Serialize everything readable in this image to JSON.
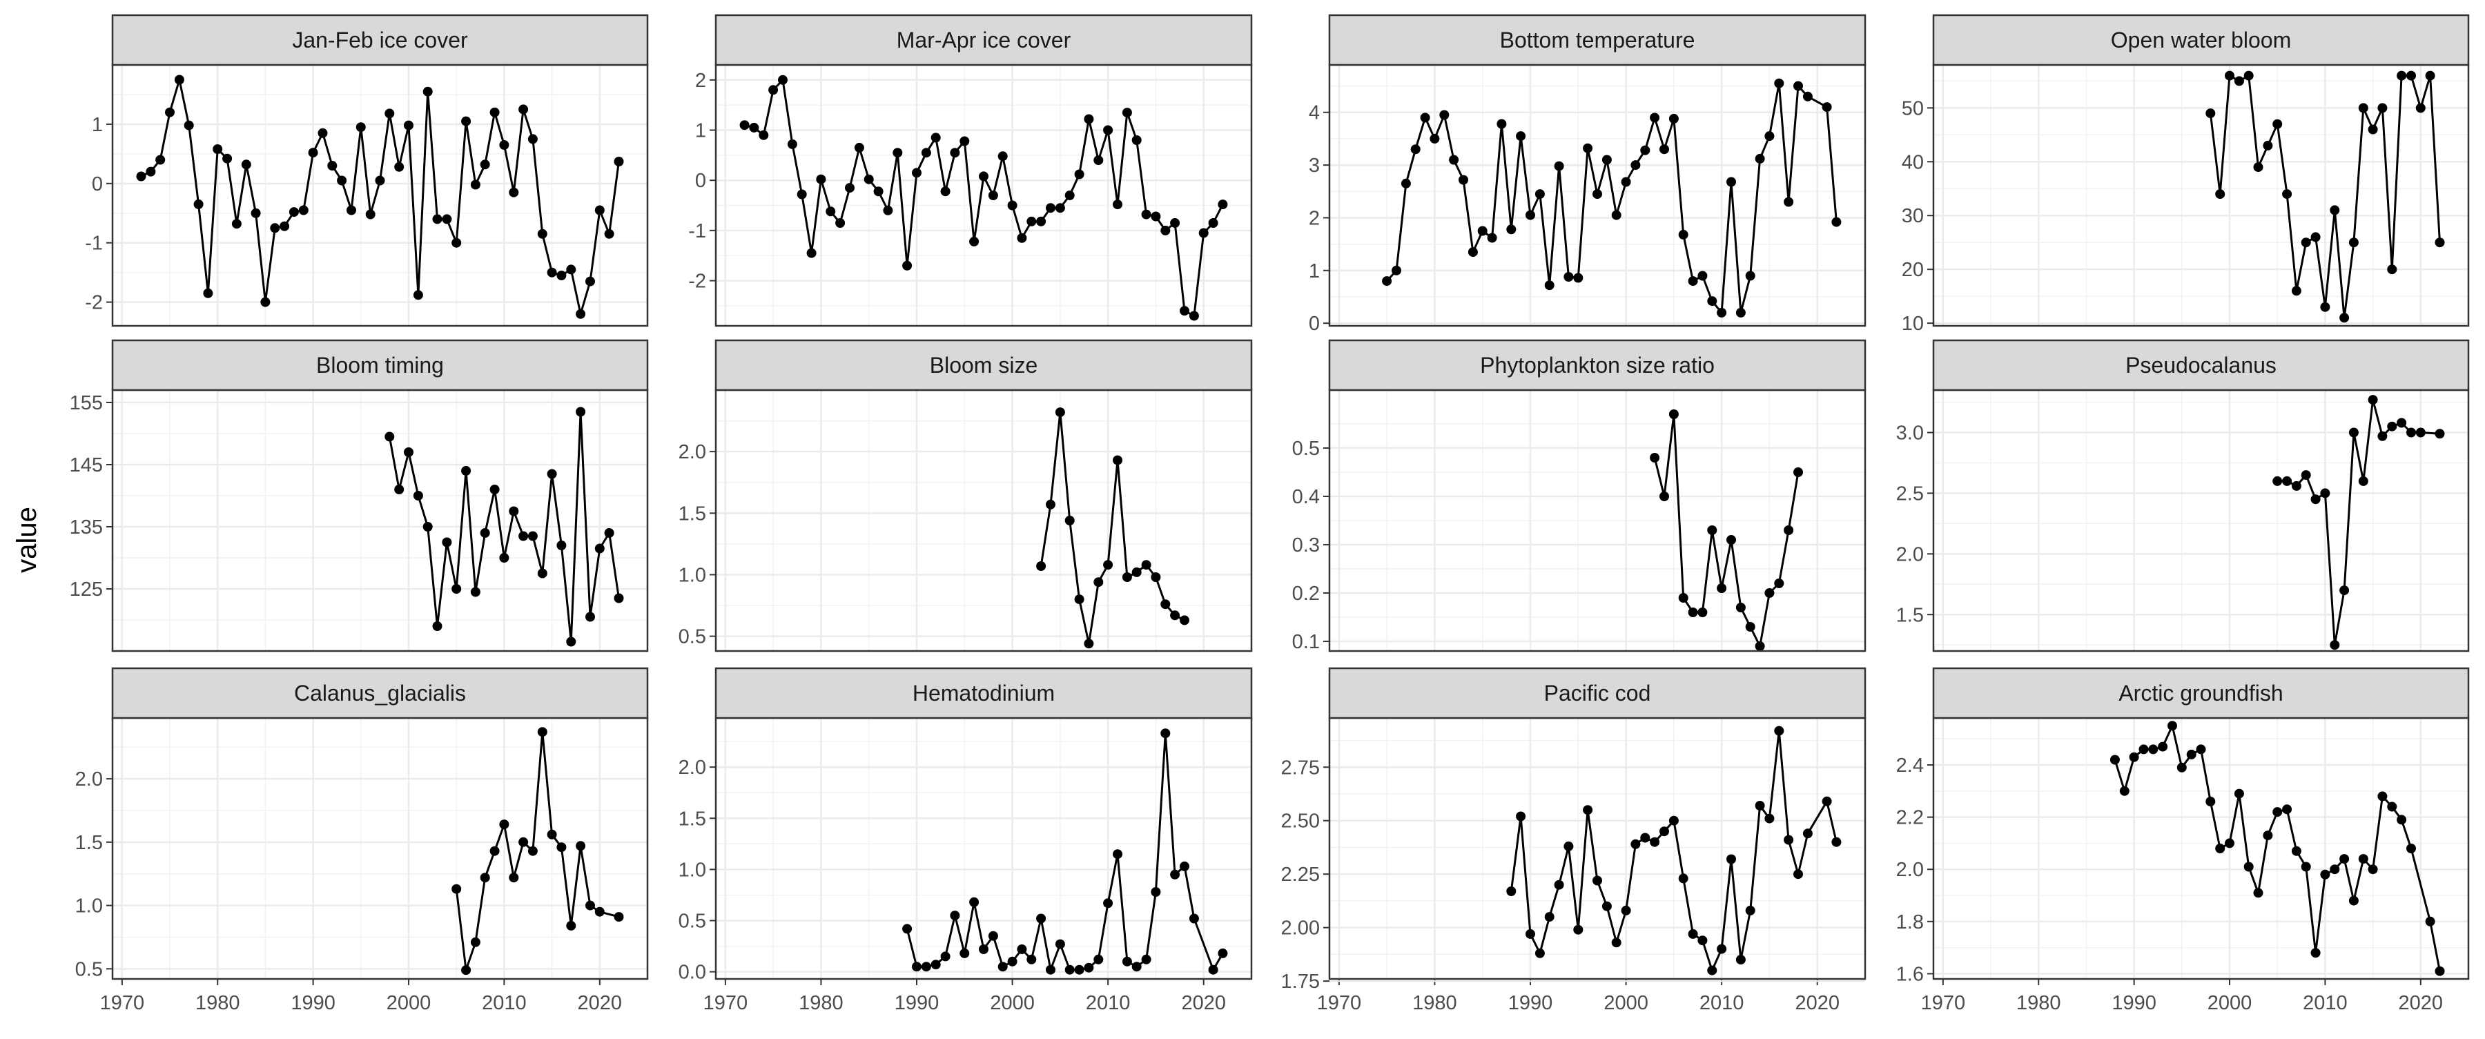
{
  "figure": {
    "ylabel": "value"
  },
  "chart_data": [
    {
      "type": "line",
      "title": "Jan-Feb ice cover",
      "xlim": [
        1969,
        2025
      ],
      "ylim": [
        -2.4,
        2
      ],
      "xticks": [
        1970,
        1980,
        1990,
        2000,
        2010,
        2020
      ],
      "yticks": [
        -2,
        -1,
        0,
        1
      ],
      "ytick_labels": [
        "-2",
        "-1",
        "0",
        "1"
      ],
      "x": [
        1972,
        1973,
        1974,
        1975,
        1976,
        1977,
        1978,
        1979,
        1980,
        1981,
        1982,
        1983,
        1984,
        1985,
        1986,
        1987,
        1988,
        1989,
        1990,
        1991,
        1992,
        1993,
        1994,
        1995,
        1996,
        1997,
        1998,
        1999,
        2000,
        2001,
        2002,
        2003,
        2004,
        2005,
        2006,
        2007,
        2008,
        2009,
        2010,
        2011,
        2012,
        2013,
        2014,
        2015,
        2016,
        2017,
        2018,
        2019,
        2020,
        2021,
        2022
      ],
      "y": [
        0.12,
        0.2,
        0.4,
        1.2,
        1.75,
        0.98,
        -0.35,
        -1.85,
        0.58,
        0.42,
        -0.68,
        0.32,
        -0.5,
        -2.0,
        -0.75,
        -0.72,
        -0.48,
        -0.45,
        0.52,
        0.85,
        0.3,
        0.05,
        -0.45,
        0.95,
        -0.52,
        0.05,
        1.18,
        0.28,
        0.98,
        -1.88,
        1.55,
        -0.6,
        -0.6,
        -1.0,
        1.05,
        -0.02,
        0.32,
        1.2,
        0.65,
        -0.15,
        1.25,
        0.75,
        -0.85,
        -1.5,
        -1.55,
        -1.45,
        -2.2,
        -1.65,
        -0.45,
        -0.85,
        0.37
      ]
    },
    {
      "type": "line",
      "title": "Mar-Apr ice cover",
      "xlim": [
        1969,
        2025
      ],
      "ylim": [
        -2.9,
        2.3
      ],
      "xticks": [
        1970,
        1980,
        1990,
        2000,
        2010,
        2020
      ],
      "yticks": [
        -2,
        -1,
        0,
        1,
        2
      ],
      "ytick_labels": [
        "-2",
        "-1",
        "0",
        "1",
        "2"
      ],
      "x": [
        1972,
        1973,
        1974,
        1975,
        1976,
        1977,
        1978,
        1979,
        1980,
        1981,
        1982,
        1983,
        1984,
        1985,
        1986,
        1987,
        1988,
        1989,
        1990,
        1991,
        1992,
        1993,
        1994,
        1995,
        1996,
        1997,
        1998,
        1999,
        2000,
        2001,
        2002,
        2003,
        2004,
        2005,
        2006,
        2007,
        2008,
        2009,
        2010,
        2011,
        2012,
        2013,
        2014,
        2015,
        2016,
        2017,
        2018,
        2019,
        2020,
        2021,
        2022
      ],
      "y": [
        1.1,
        1.05,
        0.9,
        1.8,
        2.0,
        0.72,
        -0.28,
        -1.45,
        0.02,
        -0.62,
        -0.85,
        -0.15,
        0.65,
        0.02,
        -0.22,
        -0.6,
        0.55,
        -1.7,
        0.15,
        0.55,
        0.85,
        -0.22,
        0.55,
        0.78,
        -1.22,
        0.08,
        -0.3,
        0.48,
        -0.5,
        -1.15,
        -0.82,
        -0.82,
        -0.55,
        -0.55,
        -0.3,
        0.12,
        1.22,
        0.4,
        1.0,
        -0.48,
        1.35,
        0.8,
        -0.68,
        -0.72,
        -1.0,
        -0.85,
        -2.6,
        -2.7,
        -1.05,
        -0.85,
        -0.48
      ]
    },
    {
      "type": "line",
      "title": "Bottom temperature",
      "xlim": [
        1969,
        2025
      ],
      "ylim": [
        -0.05,
        4.9
      ],
      "xticks": [
        1970,
        1980,
        1990,
        2000,
        2010,
        2020
      ],
      "yticks": [
        0,
        1,
        2,
        3,
        4
      ],
      "ytick_labels": [
        "0",
        "1",
        "2",
        "3",
        "4"
      ],
      "x": [
        1975,
        1976,
        1977,
        1978,
        1979,
        1980,
        1981,
        1982,
        1983,
        1984,
        1985,
        1986,
        1987,
        1988,
        1989,
        1990,
        1991,
        1992,
        1993,
        1994,
        1995,
        1996,
        1997,
        1998,
        1999,
        2000,
        2001,
        2002,
        2003,
        2004,
        2005,
        2006,
        2007,
        2008,
        2009,
        2010,
        2011,
        2012,
        2013,
        2014,
        2015,
        2016,
        2017,
        2018,
        2019,
        2021,
        2022
      ],
      "y": [
        0.8,
        1.0,
        2.65,
        3.3,
        3.9,
        3.5,
        3.95,
        3.1,
        2.72,
        1.35,
        1.75,
        1.62,
        3.78,
        1.78,
        3.55,
        2.05,
        2.45,
        0.72,
        2.98,
        0.88,
        0.86,
        3.32,
        2.45,
        3.1,
        2.05,
        2.68,
        3.0,
        3.28,
        3.9,
        3.3,
        3.88,
        1.68,
        0.8,
        0.9,
        0.42,
        0.2,
        2.68,
        0.2,
        0.9,
        3.12,
        3.55,
        4.55,
        2.3,
        4.5,
        4.3,
        4.1,
        1.92
      ]
    },
    {
      "type": "line",
      "title": "Open water bloom",
      "xlim": [
        1969,
        2025
      ],
      "ylim": [
        9.5,
        58
      ],
      "xticks": [
        1970,
        1980,
        1990,
        2000,
        2010,
        2020
      ],
      "yticks": [
        10,
        20,
        30,
        40,
        50
      ],
      "ytick_labels": [
        "10",
        "20",
        "30",
        "40",
        "50"
      ],
      "x": [
        1998,
        1999,
        2000,
        2001,
        2002,
        2003,
        2004,
        2005,
        2006,
        2007,
        2008,
        2009,
        2010,
        2011,
        2012,
        2013,
        2014,
        2015,
        2016,
        2017,
        2018,
        2019,
        2020,
        2021,
        2022
      ],
      "y": [
        49,
        34,
        56,
        55,
        56,
        39,
        43,
        47,
        34,
        16,
        25,
        26,
        13,
        31,
        11,
        25,
        50,
        46,
        50,
        20,
        56,
        56,
        50,
        56,
        25
      ]
    },
    {
      "type": "line",
      "title": "Bloom timing",
      "xlim": [
        1969,
        2025
      ],
      "ylim": [
        115,
        157
      ],
      "xticks": [
        1970,
        1980,
        1990,
        2000,
        2010,
        2020
      ],
      "yticks": [
        125,
        135,
        145,
        155
      ],
      "ytick_labels": [
        "125",
        "135",
        "145",
        "155"
      ],
      "x": [
        1998,
        1999,
        2000,
        2001,
        2002,
        2003,
        2004,
        2005,
        2006,
        2007,
        2008,
        2009,
        2010,
        2011,
        2012,
        2013,
        2014,
        2015,
        2016,
        2017,
        2018,
        2019,
        2020,
        2021,
        2022
      ],
      "y": [
        149.5,
        141,
        147,
        140,
        135,
        119,
        132.5,
        125,
        144,
        124.5,
        134,
        141,
        130,
        137.5,
        133.5,
        133.5,
        127.5,
        143.5,
        132,
        116.5,
        153.5,
        120.5,
        131.5,
        134,
        123.5
      ]
    },
    {
      "type": "line",
      "title": "Bloom size",
      "xlim": [
        1969,
        2025
      ],
      "ylim": [
        0.38,
        2.5
      ],
      "xticks": [
        1970,
        1980,
        1990,
        2000,
        2010,
        2020
      ],
      "yticks": [
        0.5,
        1.0,
        1.5,
        2.0
      ],
      "ytick_labels": [
        "0.5",
        "1.0",
        "1.5",
        "2.0"
      ],
      "x": [
        2003,
        2004,
        2005,
        2006,
        2007,
        2008,
        2009,
        2010,
        2011,
        2012,
        2013,
        2014,
        2015,
        2016,
        2017,
        2018
      ],
      "y": [
        1.07,
        1.57,
        2.32,
        1.44,
        0.8,
        0.44,
        0.94,
        1.08,
        1.93,
        0.98,
        1.02,
        1.08,
        0.98,
        0.76,
        0.67,
        0.63
      ]
    },
    {
      "type": "line",
      "title": "Phytoplankton size ratio",
      "xlim": [
        1969,
        2025
      ],
      "ylim": [
        0.08,
        0.62
      ],
      "xticks": [
        1970,
        1980,
        1990,
        2000,
        2010,
        2020
      ],
      "yticks": [
        0.1,
        0.2,
        0.3,
        0.4,
        0.5
      ],
      "ytick_labels": [
        "0.1",
        "0.2",
        "0.3",
        "0.4",
        "0.5"
      ],
      "x": [
        2003,
        2004,
        2005,
        2006,
        2007,
        2008,
        2009,
        2010,
        2011,
        2012,
        2013,
        2014,
        2015,
        2016,
        2017,
        2018
      ],
      "y": [
        0.48,
        0.4,
        0.57,
        0.19,
        0.16,
        0.16,
        0.33,
        0.21,
        0.31,
        0.17,
        0.13,
        0.09,
        0.2,
        0.22,
        0.33,
        0.45
      ]
    },
    {
      "type": "line",
      "title": "Pseudocalanus",
      "xlim": [
        1969,
        2025
      ],
      "ylim": [
        1.2,
        3.35
      ],
      "xticks": [
        1970,
        1980,
        1990,
        2000,
        2010,
        2020
      ],
      "yticks": [
        1.5,
        2.0,
        2.5,
        3.0
      ],
      "ytick_labels": [
        "1.5",
        "2.0",
        "2.5",
        "3.0"
      ],
      "x": [
        2005,
        2006,
        2007,
        2008,
        2009,
        2010,
        2011,
        2012,
        2013,
        2014,
        2015,
        2016,
        2017,
        2018,
        2019,
        2020,
        2022
      ],
      "y": [
        2.6,
        2.6,
        2.56,
        2.65,
        2.45,
        2.5,
        1.25,
        1.7,
        3.0,
        2.6,
        3.27,
        2.97,
        3.05,
        3.08,
        3.0,
        3.0,
        2.99
      ]
    },
    {
      "type": "line",
      "title": "Calanus_glacialis",
      "xlim": [
        1969,
        2025
      ],
      "ylim": [
        0.42,
        2.48
      ],
      "xticks": [
        1970,
        1980,
        1990,
        2000,
        2010,
        2020
      ],
      "yticks": [
        0.5,
        1.0,
        1.5,
        2.0
      ],
      "ytick_labels": [
        "0.5",
        "1.0",
        "1.5",
        "2.0"
      ],
      "x": [
        2005,
        2006,
        2007,
        2008,
        2009,
        2010,
        2011,
        2012,
        2013,
        2014,
        2015,
        2016,
        2017,
        2018,
        2019,
        2020,
        2022
      ],
      "y": [
        1.13,
        0.49,
        0.71,
        1.22,
        1.43,
        1.64,
        1.22,
        1.5,
        1.43,
        2.37,
        1.56,
        1.46,
        0.84,
        1.47,
        1.0,
        0.95,
        0.91
      ]
    },
    {
      "type": "line",
      "title": "Hematodinium",
      "xlim": [
        1969,
        2025
      ],
      "ylim": [
        -0.07,
        2.48
      ],
      "xticks": [
        1970,
        1980,
        1990,
        2000,
        2010,
        2020
      ],
      "yticks": [
        0.0,
        0.5,
        1.0,
        1.5,
        2.0
      ],
      "ytick_labels": [
        "0.0",
        "0.5",
        "1.0",
        "1.5",
        "2.0"
      ],
      "x": [
        1989,
        1990,
        1991,
        1992,
        1993,
        1994,
        1995,
        1996,
        1997,
        1998,
        1999,
        2000,
        2001,
        2002,
        2003,
        2004,
        2005,
        2006,
        2007,
        2008,
        2009,
        2010,
        2011,
        2012,
        2013,
        2014,
        2015,
        2016,
        2017,
        2018,
        2019,
        2021,
        2022
      ],
      "y": [
        0.42,
        0.05,
        0.05,
        0.07,
        0.15,
        0.55,
        0.18,
        0.68,
        0.22,
        0.35,
        0.05,
        0.1,
        0.22,
        0.12,
        0.52,
        0.02,
        0.27,
        0.02,
        0.02,
        0.04,
        0.12,
        0.67,
        1.15,
        0.1,
        0.05,
        0.12,
        0.78,
        2.33,
        0.95,
        1.03,
        0.52,
        0.02,
        0.18
      ]
    },
    {
      "type": "line",
      "title": "Pacific cod",
      "xlim": [
        1969,
        2025
      ],
      "ylim": [
        1.76,
        2.98
      ],
      "xticks": [
        1970,
        1980,
        1990,
        2000,
        2010,
        2020
      ],
      "yticks": [
        1.75,
        2.0,
        2.25,
        2.5,
        2.75
      ],
      "ytick_labels": [
        "1.75",
        "2.00",
        "2.25",
        "2.50",
        "2.75"
      ],
      "x": [
        1988,
        1989,
        1990,
        1991,
        1992,
        1993,
        1994,
        1995,
        1996,
        1997,
        1998,
        1999,
        2000,
        2001,
        2002,
        2003,
        2004,
        2005,
        2006,
        2007,
        2008,
        2009,
        2010,
        2011,
        2012,
        2013,
        2014,
        2015,
        2016,
        2017,
        2018,
        2019,
        2021,
        2022
      ],
      "y": [
        2.17,
        2.52,
        1.97,
        1.88,
        2.05,
        2.2,
        2.38,
        1.99,
        2.55,
        2.22,
        2.1,
        1.93,
        2.08,
        2.39,
        2.42,
        2.4,
        2.45,
        2.5,
        2.23,
        1.97,
        1.94,
        1.8,
        1.9,
        2.32,
        1.85,
        2.08,
        2.57,
        2.51,
        2.92,
        2.41,
        2.25,
        2.44,
        2.59,
        2.4
      ]
    },
    {
      "type": "line",
      "title": "Arctic groundfish",
      "xlim": [
        1969,
        2025
      ],
      "ylim": [
        1.58,
        2.58
      ],
      "xticks": [
        1970,
        1980,
        1990,
        2000,
        2010,
        2020
      ],
      "yticks": [
        1.6,
        1.8,
        2.0,
        2.2,
        2.4
      ],
      "ytick_labels": [
        "1.6",
        "1.8",
        "2.0",
        "2.2",
        "2.4"
      ],
      "x": [
        1988,
        1989,
        1990,
        1991,
        1992,
        1993,
        1994,
        1995,
        1996,
        1997,
        1998,
        1999,
        2000,
        2001,
        2002,
        2003,
        2004,
        2005,
        2006,
        2007,
        2008,
        2009,
        2010,
        2011,
        2012,
        2013,
        2014,
        2015,
        2016,
        2017,
        2018,
        2019,
        2021,
        2022
      ],
      "y": [
        2.42,
        2.3,
        2.43,
        2.46,
        2.46,
        2.47,
        2.55,
        2.39,
        2.44,
        2.46,
        2.26,
        2.08,
        2.1,
        2.29,
        2.01,
        1.91,
        2.13,
        2.22,
        2.23,
        2.07,
        2.01,
        1.68,
        1.98,
        2.0,
        2.04,
        1.88,
        2.04,
        2.0,
        2.28,
        2.24,
        2.19,
        2.08,
        1.8,
        1.61
      ]
    }
  ]
}
